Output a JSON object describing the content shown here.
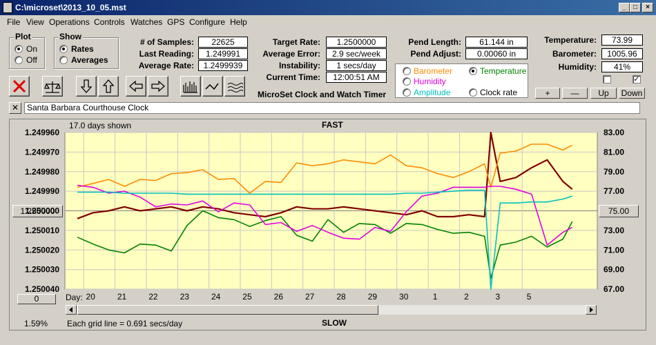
{
  "window": {
    "title": "C:\\microset\\2013_10_05.mst"
  },
  "menu": [
    "File",
    "View",
    "Operations",
    "Controls",
    "Watches",
    "GPS",
    "Configure",
    "Help"
  ],
  "plot_group": {
    "title": "Plot",
    "on": "On",
    "off": "Off"
  },
  "show_group": {
    "title": "Show",
    "rates": "Rates",
    "averages": "Averages"
  },
  "stats": {
    "samples_label": "# of Samples:",
    "samples": "22625",
    "last_label": "Last Reading:",
    "last": "1.249991",
    "avg_label": "Average Rate:",
    "avg": "1.2499939"
  },
  "rate": {
    "target_label": "Target Rate:",
    "target": "1.2500000",
    "error_label": "Average Error:",
    "error": "2.9 sec/week",
    "instab_label": "Instability:",
    "instab": "1 secs/day",
    "time_label": "Current Time:",
    "time": "12:00:51 AM",
    "app_name": "MicroSet Clock and Watch Timer"
  },
  "pend": {
    "length_label": "Pend Length:",
    "length": "61.144 in",
    "adjust_label": "Pend Adjust:",
    "adjust": "0.00060 in"
  },
  "env": {
    "temp_label": "Temperature:",
    "temp": "73.99",
    "baro_label": "Barometer:",
    "baro": "1005.96",
    "hum_label": "Humidity:",
    "hum": "41%"
  },
  "secondary": {
    "barometer": "Barometer",
    "temperature": "Temperature",
    "humidity": "Humidity",
    "amplitude": "Amplitude",
    "clock_rate": "Clock rate"
  },
  "colors": {
    "barometer": "#ff8c00",
    "temperature": "#008000",
    "humidity": "#e000e0",
    "amplitude": "#00c0c0",
    "rate": "#800000"
  },
  "scale_buttons": {
    "plus": "+",
    "minus": "—",
    "up": "Up",
    "down": "Down"
  },
  "watch_name": "Santa Barbara Courthouse Clock",
  "chart": {
    "days_shown": "17.0 days shown",
    "fast": "FAST",
    "slow": "SLOW",
    "left_center": "1.250000",
    "right_center": "75.00",
    "bottom_left_btn": "0",
    "day_label": "Day:",
    "grid_note": "Each grid line = 0.691 secs/day",
    "percent": "1.59%"
  },
  "chart_data": {
    "type": "line",
    "title": "",
    "xlabel": "Day:",
    "x_ticks": [
      "20",
      "21",
      "22",
      "23",
      "24",
      "25",
      "26",
      "27",
      "28",
      "29",
      "30",
      "1",
      "2",
      "3",
      "5"
    ],
    "y_left_ticks": [
      "1.249960",
      "1.249970",
      "1.249980",
      "1.249990",
      "1.250000",
      "1.250010",
      "1.250020",
      "1.250030",
      "1.250040"
    ],
    "y_right_ticks": [
      "83.00",
      "81.00",
      "79.00",
      "77.00",
      "75.00",
      "73.00",
      "71.00",
      "69.00",
      "67.00"
    ],
    "ylim_left": [
      1.24996,
      1.25004
    ],
    "ylim_right": [
      67,
      83
    ],
    "left_axis_inverted": true,
    "grid": true,
    "x": [
      19.8,
      20.3,
      20.8,
      21.3,
      21.8,
      22.3,
      22.8,
      23.3,
      23.8,
      24.3,
      24.8,
      25.3,
      25.8,
      26.3,
      26.8,
      27.3,
      27.8,
      28.3,
      28.8,
      29.3,
      29.8,
      30.3,
      30.8,
      31.3,
      31.8,
      32.3,
      32.8,
      33.0,
      33.3,
      33.8,
      34.3,
      34.8,
      35.3,
      35.6
    ],
    "series": [
      {
        "name": "Rates",
        "axis": "left",
        "color": "#800000",
        "values": [
          1.250004,
          1.250001,
          1.25,
          1.249998,
          1.25,
          1.249999,
          1.249998,
          1.25,
          1.249998,
          1.249999,
          1.250001,
          1.250002,
          1.250003,
          1.250001,
          1.249998,
          1.249999,
          1.249999,
          1.249998,
          1.249999,
          1.25,
          1.250001,
          1.250002,
          1.25,
          1.250003,
          1.250003,
          1.250002,
          1.250003,
          1.249955,
          1.249985,
          1.249983,
          1.249978,
          1.249974,
          1.249985,
          1.249989
        ]
      },
      {
        "name": "Barometer",
        "axis": "right",
        "color": "#ff8c00",
        "values": [
          77.4,
          77.8,
          78.2,
          77.5,
          78.2,
          78.1,
          78.8,
          78.9,
          79.2,
          78.2,
          78.3,
          76.8,
          78.0,
          77.9,
          79.9,
          79.6,
          79.8,
          80.2,
          80.0,
          79.8,
          80.7,
          79.6,
          79.4,
          78.8,
          78.4,
          79.0,
          79.8,
          77.4,
          80.9,
          81.1,
          81.8,
          81.8,
          81.2,
          81.7
        ]
      },
      {
        "name": "Temperature",
        "axis": "right",
        "color": "#008000",
        "values": [
          72.3,
          71.6,
          71.0,
          70.7,
          71.6,
          71.5,
          70.9,
          73.5,
          75.0,
          74.3,
          74.1,
          73.4,
          74.0,
          74.4,
          72.5,
          71.9,
          74.1,
          72.8,
          73.7,
          73.6,
          72.7,
          73.7,
          73.6,
          73.1,
          72.7,
          72.8,
          72.4,
          68.1,
          71.5,
          71.8,
          72.4,
          71.3,
          72.1,
          73.9
        ]
      },
      {
        "name": "Humidity",
        "axis": "right",
        "color": "#e000e0",
        "values": [
          77.6,
          77.4,
          76.8,
          77.0,
          76.4,
          75.4,
          75.7,
          75.6,
          76.0,
          74.9,
          75.8,
          75.6,
          73.6,
          73.8,
          72.9,
          73.5,
          72.8,
          72.2,
          72.1,
          73.3,
          72.9,
          74.9,
          76.5,
          76.8,
          77.4,
          77.4,
          77.4,
          77.5,
          77.5,
          77.2,
          76.7,
          71.5,
          72.8,
          73.3
        ]
      },
      {
        "name": "Amplitude",
        "axis": "right",
        "color": "#00c0c0",
        "values": [
          76.9,
          76.9,
          76.9,
          76.8,
          76.8,
          76.8,
          76.8,
          76.7,
          76.7,
          76.7,
          76.7,
          76.7,
          76.7,
          76.7,
          76.7,
          76.7,
          76.7,
          76.7,
          76.7,
          76.7,
          76.7,
          76.8,
          76.8,
          76.9,
          77.0,
          77.1,
          77.1,
          67.0,
          75.8,
          75.8,
          75.9,
          75.9,
          76.2,
          76.5
        ]
      }
    ]
  }
}
